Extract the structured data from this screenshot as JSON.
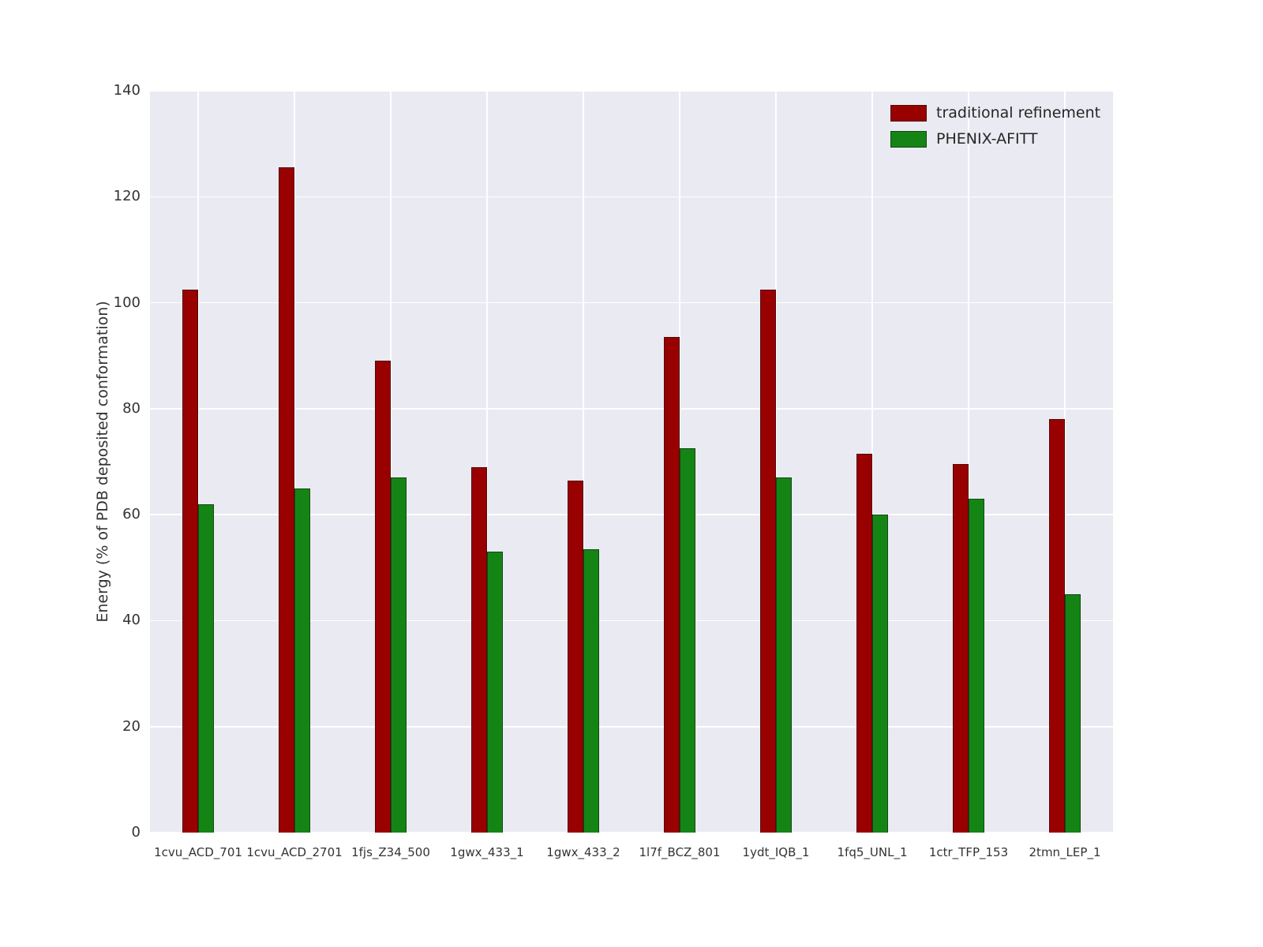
{
  "figure": {
    "background": "#ffffff",
    "plot_background": "#eaeaf2",
    "grid_color": "#ffffff"
  },
  "chart_data": {
    "type": "bar",
    "title": "",
    "xlabel": "",
    "ylabel": "Energy (% of PDB deposited conformation)",
    "ylim": [
      0,
      140
    ],
    "y_ticks": [
      0,
      20,
      40,
      60,
      80,
      100,
      120,
      140
    ],
    "grid": true,
    "legend_position": "upper right",
    "categories": [
      "1cvu_ACD_701",
      "1cvu_ACD_2701",
      "1fjs_Z34_500",
      "1gwx_433_1",
      "1gwx_433_2",
      "1l7f_BCZ_801",
      "1ydt_IQB_1",
      "1fq5_UNL_1",
      "1ctr_TFP_153",
      "2tmn_LEP_1"
    ],
    "series": [
      {
        "name": "traditional refinement",
        "color": "#990000",
        "values": [
          102.5,
          125.5,
          89.0,
          69.0,
          66.5,
          93.5,
          102.5,
          71.5,
          69.5,
          78.0
        ]
      },
      {
        "name": "PHENIX-AFITT",
        "color": "#148514",
        "values": [
          62.0,
          65.0,
          67.0,
          53.0,
          53.5,
          72.5,
          67.0,
          60.0,
          63.0,
          45.0
        ]
      }
    ]
  }
}
